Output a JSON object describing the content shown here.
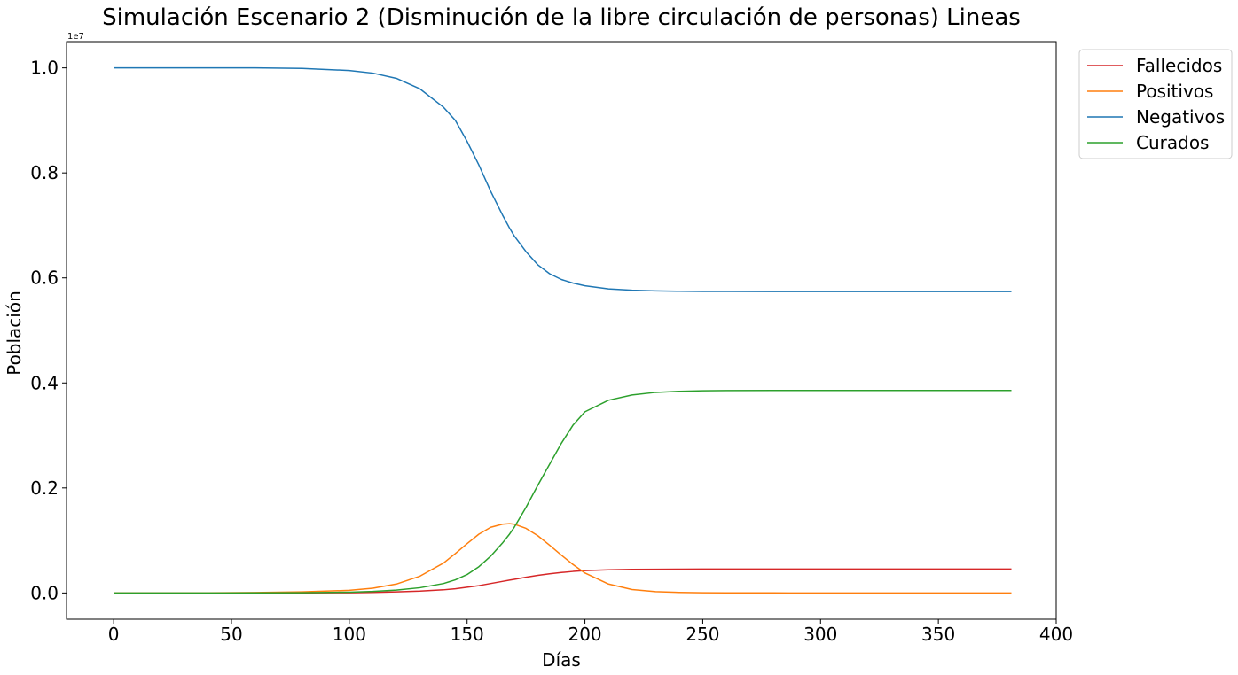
{
  "chart_data": {
    "type": "line",
    "title": "Simulación Escenario 2 (Disminución de la libre circulación de personas) Lineas",
    "xlabel": "Días",
    "ylabel": "Población",
    "y_offset_label": "1e7",
    "xlim": [
      -20,
      400
    ],
    "ylim": [
      -0.05,
      1.05
    ],
    "y_scale_factor": 10000000,
    "x_ticks": [
      0,
      50,
      100,
      150,
      200,
      250,
      300,
      350,
      400
    ],
    "x_tick_labels": [
      "0",
      "50",
      "100",
      "150",
      "200",
      "250",
      "300",
      "350",
      "400"
    ],
    "y_ticks": [
      0.0,
      0.2,
      0.4,
      0.6,
      0.8,
      1.0
    ],
    "y_tick_labels": [
      "0.0",
      "0.2",
      "0.4",
      "0.6",
      "0.8",
      "1.0"
    ],
    "grid": false,
    "legend_position": "outside-top-right",
    "x": [
      0,
      20,
      40,
      60,
      80,
      100,
      110,
      120,
      130,
      140,
      145,
      150,
      155,
      160,
      165,
      168,
      170,
      175,
      180,
      185,
      190,
      195,
      200,
      210,
      220,
      230,
      240,
      250,
      260,
      280,
      300,
      320,
      340,
      360,
      381
    ],
    "series": [
      {
        "name": "Fallecidos",
        "color": "#d62728",
        "values": [
          0,
          0,
          0,
          5e-05,
          0.0002,
          0.0005,
          0.001,
          0.002,
          0.0035,
          0.006,
          0.008,
          0.011,
          0.014,
          0.018,
          0.022,
          0.0245,
          0.026,
          0.03,
          0.0335,
          0.0365,
          0.039,
          0.041,
          0.0425,
          0.044,
          0.0448,
          0.0452,
          0.0454,
          0.0455,
          0.0455,
          0.0455,
          0.0455,
          0.0455,
          0.0455,
          0.0455,
          0.0455
        ]
      },
      {
        "name": "Positivos",
        "color": "#ff7f0e",
        "values": [
          0,
          5e-05,
          0.0002,
          0.0008,
          0.002,
          0.005,
          0.009,
          0.017,
          0.032,
          0.057,
          0.075,
          0.094,
          0.112,
          0.125,
          0.131,
          0.132,
          0.131,
          0.123,
          0.109,
          0.091,
          0.072,
          0.054,
          0.038,
          0.017,
          0.0065,
          0.0025,
          0.001,
          0.0004,
          0.0002,
          0.0001,
          0,
          0,
          0,
          0,
          0
        ]
      },
      {
        "name": "Negativos",
        "color": "#1f77b4",
        "values": [
          1.0,
          1.0,
          1.0,
          1.0,
          0.999,
          0.995,
          0.99,
          0.98,
          0.96,
          0.925,
          0.9,
          0.86,
          0.815,
          0.765,
          0.72,
          0.695,
          0.68,
          0.65,
          0.625,
          0.608,
          0.597,
          0.59,
          0.585,
          0.579,
          0.5765,
          0.5752,
          0.5746,
          0.5743,
          0.5742,
          0.5741,
          0.574,
          0.574,
          0.574,
          0.574,
          0.574
        ]
      },
      {
        "name": "Curados",
        "color": "#2ca02c",
        "values": [
          0,
          0,
          0,
          0.0001,
          0.0005,
          0.0015,
          0.003,
          0.0055,
          0.01,
          0.018,
          0.025,
          0.035,
          0.05,
          0.07,
          0.095,
          0.112,
          0.125,
          0.163,
          0.205,
          0.245,
          0.285,
          0.32,
          0.345,
          0.367,
          0.377,
          0.382,
          0.384,
          0.385,
          0.3855,
          0.3857,
          0.3858,
          0.3858,
          0.3858,
          0.3858,
          0.3858
        ]
      }
    ]
  }
}
